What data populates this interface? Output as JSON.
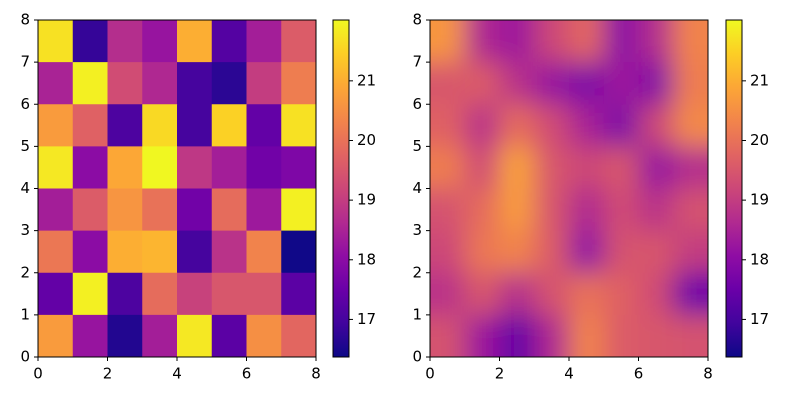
{
  "chart_data": [
    {
      "type": "heatmap",
      "colormap": "plasma",
      "interpolation": "nearest",
      "xlim": [
        0,
        8
      ],
      "ylim": [
        0,
        8
      ],
      "xticks": [
        0,
        2,
        4,
        6,
        8
      ],
      "yticks": [
        0,
        1,
        2,
        3,
        4,
        5,
        6,
        7,
        8
      ],
      "clim": [
        16.37,
        22.02
      ],
      "cticks": [
        17,
        18,
        19,
        20,
        21
      ],
      "z": [
        [
          21.7,
          16.8,
          18.7,
          18.2,
          21.0,
          17.2,
          18.4,
          19.6
        ],
        [
          18.5,
          21.9,
          19.3,
          18.6,
          17.0,
          16.7,
          19.0,
          20.2
        ],
        [
          20.7,
          19.7,
          17.1,
          21.6,
          17.0,
          21.5,
          17.4,
          21.7
        ],
        [
          21.8,
          18.0,
          20.9,
          22.0,
          18.9,
          18.4,
          17.6,
          17.8
        ],
        [
          18.4,
          19.6,
          20.6,
          20.0,
          17.6,
          19.9,
          18.3,
          21.9
        ],
        [
          20.1,
          18.0,
          21.0,
          21.1,
          17.0,
          18.8,
          20.3,
          16.4
        ],
        [
          17.4,
          21.9,
          17.1,
          19.9,
          19.1,
          19.5,
          19.5,
          17.3
        ],
        [
          20.7,
          18.2,
          16.6,
          18.4,
          21.8,
          17.3,
          20.5,
          19.8
        ]
      ]
    },
    {
      "type": "heatmap",
      "colormap": "plasma",
      "interpolation": "smooth",
      "xlim": [
        0,
        8
      ],
      "ylim": [
        0,
        8
      ],
      "xticks": [
        0,
        2,
        4,
        6,
        8
      ],
      "yticks": [
        0,
        1,
        2,
        3,
        4,
        5,
        6,
        7,
        8
      ],
      "clim": [
        16.37,
        22.02
      ],
      "cticks": [
        17,
        18,
        19,
        20,
        21
      ],
      "z": [
        [
          20.6,
          18.6,
          18.3,
          19.2,
          19.8,
          18.0,
          18.7,
          20.3
        ],
        [
          19.5,
          19.6,
          18.8,
          18.2,
          17.8,
          18.3,
          17.9,
          20.2
        ],
        [
          19.7,
          18.8,
          19.9,
          19.3,
          18.5,
          17.8,
          19.2,
          20.4
        ],
        [
          20.2,
          19.3,
          20.8,
          19.5,
          19.2,
          19.5,
          18.2,
          18.7
        ],
        [
          19.4,
          19.9,
          20.7,
          19.5,
          18.6,
          19.3,
          18.8,
          19.4
        ],
        [
          19.2,
          20.1,
          20.3,
          19.6,
          18.1,
          19.4,
          19.5,
          19.0
        ],
        [
          18.8,
          19.5,
          18.7,
          19.4,
          20.0,
          19.7,
          19.3,
          17.6
        ],
        [
          19.4,
          18.3,
          17.4,
          18.6,
          20.3,
          19.6,
          19.5,
          19.4
        ]
      ]
    }
  ]
}
